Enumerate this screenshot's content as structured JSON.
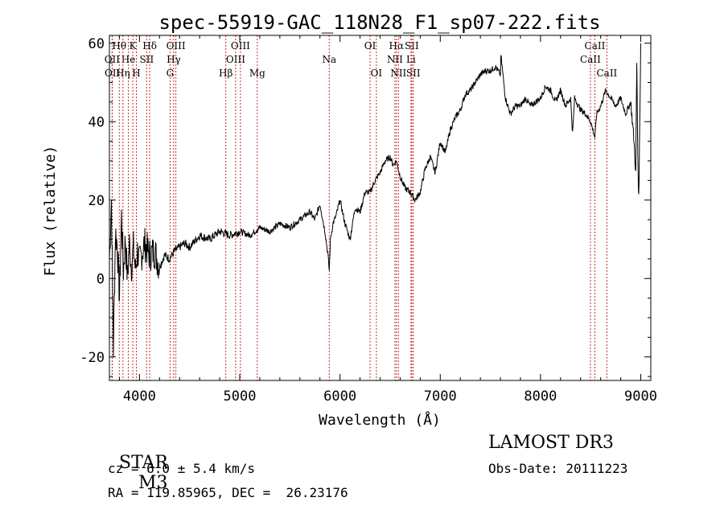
{
  "chart_data": {
    "type": "line",
    "title": "spec-55919-GAC_118N28_F1_sp07-222.fits",
    "xlabel": "Wavelength (Å)",
    "ylabel": "Flux (relative)",
    "xlim": [
      3700,
      9100
    ],
    "ylim": [
      -26,
      62
    ],
    "x_ticks": [
      4000,
      5000,
      6000,
      7000,
      8000,
      9000
    ],
    "x_tick_labels": [
      "4000",
      "5000",
      "6000",
      "7000",
      "8000",
      "9000"
    ],
    "y_ticks": [
      -20,
      0,
      20,
      40,
      60
    ],
    "y_tick_labels": [
      "-20",
      "0",
      "20",
      "40",
      "60"
    ],
    "series": [
      {
        "name": "flux",
        "x": [
          3700,
          3720,
          3740,
          3760,
          3780,
          3800,
          3820,
          3840,
          3860,
          3880,
          3900,
          3920,
          3940,
          3960,
          3980,
          4000,
          4050,
          4100,
          4150,
          4200,
          4250,
          4300,
          4350,
          4400,
          4450,
          4500,
          4600,
          4700,
          4800,
          4900,
          5000,
          5100,
          5200,
          5300,
          5400,
          5500,
          5600,
          5700,
          5750,
          5800,
          5850,
          5880,
          5893,
          5905,
          5930,
          5960,
          6000,
          6050,
          6100,
          6150,
          6200,
          6250,
          6300,
          6350,
          6400,
          6450,
          6500,
          6530,
          6563,
          6600,
          6650,
          6700,
          6750,
          6800,
          6850,
          6900,
          6950,
          7000,
          7050,
          7100,
          7150,
          7200,
          7250,
          7300,
          7350,
          7400,
          7450,
          7500,
          7550,
          7600,
          7605,
          7650,
          7700,
          7750,
          7800,
          7850,
          7900,
          7950,
          8000,
          8050,
          8100,
          8150,
          8200,
          8250,
          8300,
          8320,
          8340,
          8360,
          8400,
          8450,
          8500,
          8542,
          8560,
          8600,
          8650,
          8700,
          8750,
          8800,
          8850,
          8900,
          8930,
          8950,
          8960,
          8970,
          8980,
          8990,
          9000
        ],
        "y": [
          5,
          20,
          -18,
          12,
          8,
          -5,
          16,
          2,
          10,
          0,
          9,
          3,
          8,
          2,
          7,
          4,
          9,
          6,
          7,
          3,
          6,
          5,
          7,
          8,
          9,
          8,
          11,
          10,
          12,
          11,
          12,
          11,
          13,
          12,
          14,
          13,
          15,
          17,
          15,
          19,
          12,
          6,
          2,
          10,
          14,
          16,
          20,
          14,
          10,
          18,
          17,
          22,
          22,
          25,
          27,
          30,
          31,
          29,
          30,
          26,
          23,
          22,
          20,
          22,
          28,
          31,
          27,
          35,
          32,
          38,
          41,
          43,
          47,
          48,
          50,
          52,
          53,
          53,
          54,
          52,
          57,
          46,
          42,
          44,
          44,
          46,
          44,
          45,
          46,
          49,
          48,
          45,
          48,
          44,
          46,
          37,
          46,
          45,
          43,
          42,
          40,
          36,
          42,
          44,
          48,
          46,
          44,
          46,
          42,
          45,
          36,
          27,
          55,
          32,
          20,
          40,
          60
        ]
      }
    ],
    "line_markers": [
      {
        "label": "Hθ",
        "wavelength": 3798,
        "row": 0
      },
      {
        "label": "OII",
        "wavelength": 3727,
        "row": 1
      },
      {
        "label": "OII",
        "wavelength": 3729,
        "row": 2
      },
      {
        "label": "K",
        "wavelength": 3934,
        "row": 0
      },
      {
        "label": "He",
        "wavelength": 3889,
        "row": 1
      },
      {
        "label": "Hη",
        "wavelength": 3835,
        "row": 2
      },
      {
        "label": "H",
        "wavelength": 3969,
        "row": 2
      },
      {
        "label": "Hδ",
        "wavelength": 4102,
        "row": 0
      },
      {
        "label": "SII",
        "wavelength": 4072,
        "row": 1
      },
      {
        "label": "OIII",
        "wavelength": 4363,
        "row": 0
      },
      {
        "label": "Hγ",
        "wavelength": 4341,
        "row": 1
      },
      {
        "label": "G",
        "wavelength": 4305,
        "row": 2
      },
      {
        "label": "Hβ",
        "wavelength": 4861,
        "row": 2
      },
      {
        "label": "OIII",
        "wavelength": 5007,
        "row": 0
      },
      {
        "label": "OIII",
        "wavelength": 4959,
        "row": 1
      },
      {
        "label": "Mg",
        "wavelength": 5175,
        "row": 2
      },
      {
        "label": "Na",
        "wavelength": 5893,
        "row": 1
      },
      {
        "label": "OI",
        "wavelength": 6300,
        "row": 0
      },
      {
        "label": "OI",
        "wavelength": 6363,
        "row": 2
      },
      {
        "label": "Hα",
        "wavelength": 6563,
        "row": 0
      },
      {
        "label": "NII",
        "wavelength": 6548,
        "row": 1
      },
      {
        "label": "NII",
        "wavelength": 6583,
        "row": 2
      },
      {
        "label": "SII",
        "wavelength": 6716,
        "row": 0
      },
      {
        "label": "Li",
        "wavelength": 6708,
        "row": 1
      },
      {
        "label": "SII",
        "wavelength": 6731,
        "row": 2
      },
      {
        "label": "CaII",
        "wavelength": 8542,
        "row": 0
      },
      {
        "label": "CaII",
        "wavelength": 8498,
        "row": 1
      },
      {
        "label": "CaII",
        "wavelength": 8662,
        "row": 2
      }
    ]
  },
  "info": {
    "object_type": "STAR",
    "subclass": "M3",
    "survey": "LAMOST DR3",
    "cz_line": "cz = 6.0 ± 5.4 km/s",
    "obs_date": "Obs-Date: 20111223",
    "coords": "RA = 119.85965, DEC =  26.23176"
  },
  "colors": {
    "marker_line": "#cc2a2a",
    "spectrum": "#000000"
  }
}
